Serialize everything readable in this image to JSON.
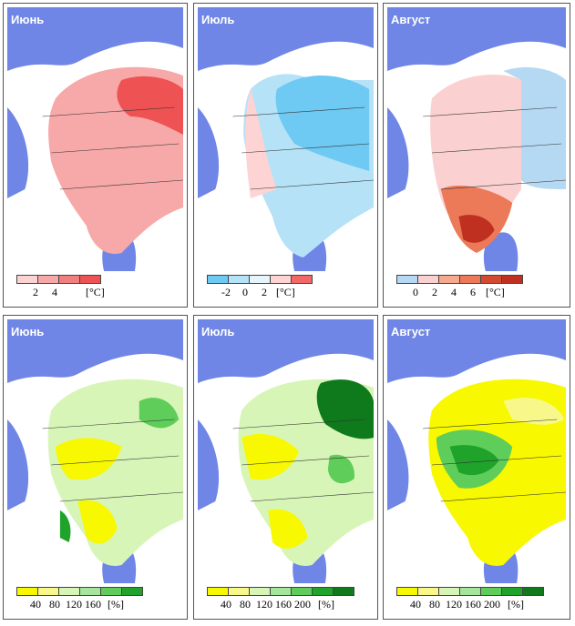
{
  "colors": {
    "sea": "#6f86e6",
    "land": "#ffffff"
  },
  "temperature_panels": [
    {
      "month": "Июнь",
      "legend": {
        "colors": [
          "#fcd3d3",
          "#f7a8a8",
          "#f27f7f",
          "#ee5252"
        ],
        "ticks": [
          "2",
          "4"
        ],
        "unit": "[°C]"
      }
    },
    {
      "month": "Июль",
      "legend": {
        "colors": [
          "#6ec9f3",
          "#b6e2f7",
          "#e6f4fb",
          "#fdd3d3",
          "#f26868"
        ],
        "ticks": [
          "-2",
          "0",
          "2"
        ],
        "unit": "[°C]"
      }
    },
    {
      "month": "Август",
      "legend": {
        "colors": [
          "#b6d9f3",
          "#fbd0d0",
          "#f6a98e",
          "#ec7a58",
          "#d24a30",
          "#c03020"
        ],
        "ticks": [
          "0",
          "2",
          "4",
          "6"
        ],
        "unit": "[°C]"
      }
    }
  ],
  "precip_panels": [
    {
      "month": "Июнь",
      "legend": {
        "colors": [
          "#f8f800",
          "#f8f88a",
          "#d8f5b8",
          "#a6e69c",
          "#5fcd5a",
          "#1fa32a"
        ],
        "ticks": [
          "40",
          "80",
          "120",
          "160"
        ],
        "unit": "[%]"
      }
    },
    {
      "month": "Июль",
      "legend": {
        "colors": [
          "#f8f800",
          "#f8f88a",
          "#d8f5b8",
          "#a6e69c",
          "#5fcd5a",
          "#1fa32a",
          "#0f7a1c"
        ],
        "ticks": [
          "40",
          "80",
          "120",
          "160",
          "200"
        ],
        "unit": "[%]"
      }
    },
    {
      "month": "Август",
      "legend": {
        "colors": [
          "#f8f800",
          "#f8f88a",
          "#d8f5b8",
          "#a6e69c",
          "#5fcd5a",
          "#1fa32a",
          "#0f7a1c"
        ],
        "ticks": [
          "40",
          "80",
          "120",
          "160",
          "200"
        ],
        "unit": "[%]"
      }
    }
  ]
}
